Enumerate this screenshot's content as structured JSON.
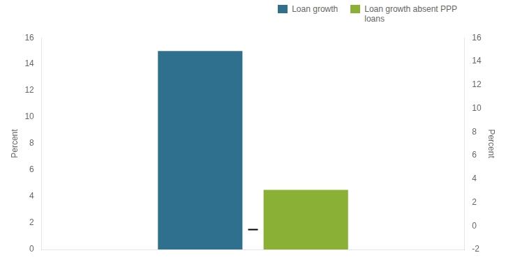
{
  "chart_data": {
    "type": "bar",
    "categories": [
      null
    ],
    "series": [
      {
        "name": "Loan growth",
        "color": "#2e708e",
        "values": [
          15.0
        ]
      },
      {
        "name": "Loan growth absent PPP\nloans",
        "color": "#8ab035",
        "values": [
          4.5
        ]
      },
      {
        "type": "scatter",
        "marker": "dash",
        "color": "#000000",
        "values": [
          1.5
        ]
      }
    ],
    "ylabel": "Percent",
    "y2label": "Percent",
    "ylim": [
      0,
      16
    ],
    "yticks": [
      0,
      2,
      4,
      6,
      8,
      10,
      12,
      14,
      16
    ],
    "y2lim": [
      -2,
      16
    ],
    "y2ticks": [
      -2,
      0,
      2,
      4,
      6,
      8,
      10,
      12,
      14,
      16
    ],
    "grid": false,
    "legend": "upper right",
    "tick_labels": "y"
  }
}
